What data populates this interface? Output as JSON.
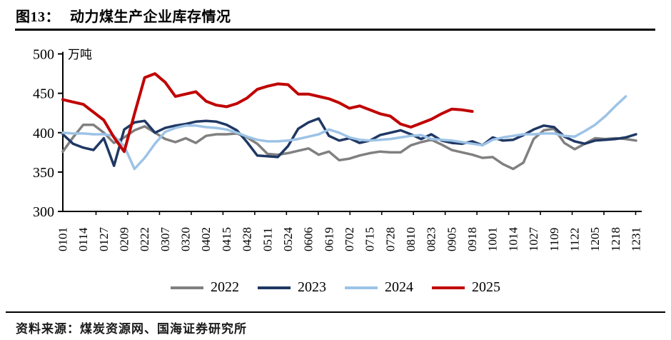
{
  "figure": {
    "title_prefix": "图13：",
    "title": "动力煤生产企业库存情况",
    "unit_label": "万吨",
    "source": "资料来源：煤炭资源网、国海证券研究所"
  },
  "colors": {
    "gray_2022": "#808080",
    "navy_2023": "#1f3864",
    "lightblue_2024": "#9dc3e6",
    "red_2025": "#c00000",
    "axis": "#000000"
  },
  "legend": [
    {
      "label": "2022",
      "color": "#808080"
    },
    {
      "label": "2023",
      "color": "#1f3864"
    },
    {
      "label": "2024",
      "color": "#9dc3e6"
    },
    {
      "label": "2025",
      "color": "#c00000"
    }
  ],
  "chart_data": {
    "type": "line",
    "title": "动力煤生产企业库存情况",
    "xlabel": "",
    "ylabel": "万吨",
    "ylim": [
      300,
      500
    ],
    "y_ticks": [
      300,
      350,
      400,
      450,
      500
    ],
    "grid": false,
    "legend_position": "bottom",
    "x_sampling": "weekly; 57 points from 0101 to 1231, axis labels shown biweekly",
    "categories": [
      "0101",
      "0114",
      "0127",
      "0209",
      "0222",
      "0307",
      "0320",
      "0402",
      "0415",
      "0428",
      "0511",
      "0524",
      "0606",
      "0619",
      "0702",
      "0715",
      "0728",
      "0810",
      "0823",
      "0905",
      "0918",
      "1001",
      "1014",
      "1027",
      "1109",
      "1122",
      "1205",
      "1218",
      "1231"
    ],
    "series": [
      {
        "name": "2022",
        "color": "#808080",
        "values": [
          376,
          394,
          410,
          410,
          400,
          387,
          394,
          403,
          408,
          400,
          392,
          388,
          393,
          387,
          396,
          398,
          398,
          399,
          394,
          386,
          373,
          372,
          374,
          377,
          380,
          372,
          376,
          365,
          367,
          371,
          374,
          376,
          375,
          375,
          384,
          388,
          391,
          385,
          378,
          375,
          372,
          368,
          369,
          360,
          354,
          362,
          392,
          403,
          405,
          387,
          379,
          386,
          393,
          392,
          393,
          392,
          390
        ]
      },
      {
        "name": "2023",
        "color": "#1f3864",
        "values": [
          398,
          386,
          381,
          378,
          393,
          358,
          404,
          413,
          415,
          400,
          406,
          409,
          411,
          414,
          415,
          414,
          410,
          403,
          388,
          371,
          370,
          369,
          383,
          405,
          413,
          418,
          396,
          390,
          393,
          387,
          390,
          397,
          400,
          403,
          398,
          392,
          398,
          390,
          387,
          386,
          389,
          384,
          394,
          390,
          391,
          397,
          404,
          409,
          407,
          395,
          389,
          386,
          390,
          391,
          392,
          394,
          398
        ]
      },
      {
        "name": "2024",
        "color": "#9dc3e6",
        "values": [
          400,
          399,
          399,
          398,
          398,
          396,
          383,
          354,
          368,
          386,
          401,
          406,
          409,
          409,
          407,
          406,
          404,
          400,
          395,
          391,
          389,
          389,
          390,
          392,
          395,
          398,
          404,
          400,
          394,
          391,
          390,
          391,
          392,
          394,
          396,
          397,
          392,
          391,
          390,
          388,
          386,
          384,
          391,
          394,
          396,
          398,
          398,
          399,
          399,
          396,
          395,
          402,
          410,
          421,
          434,
          446,
          null
        ]
      },
      {
        "name": "2025",
        "color": "#c00000",
        "values": [
          442,
          439,
          436,
          426,
          416,
          394,
          376,
          424,
          470,
          475,
          464,
          446,
          449,
          452,
          440,
          435,
          433,
          437,
          444,
          455,
          459,
          462,
          461,
          449,
          449,
          446,
          443,
          438,
          431,
          434,
          429,
          424,
          421,
          411,
          407,
          412,
          417,
          424,
          430,
          429,
          427,
          null,
          null,
          null,
          null,
          null,
          null,
          null,
          null,
          null,
          null,
          null,
          null,
          null,
          null,
          null,
          null
        ]
      }
    ]
  }
}
